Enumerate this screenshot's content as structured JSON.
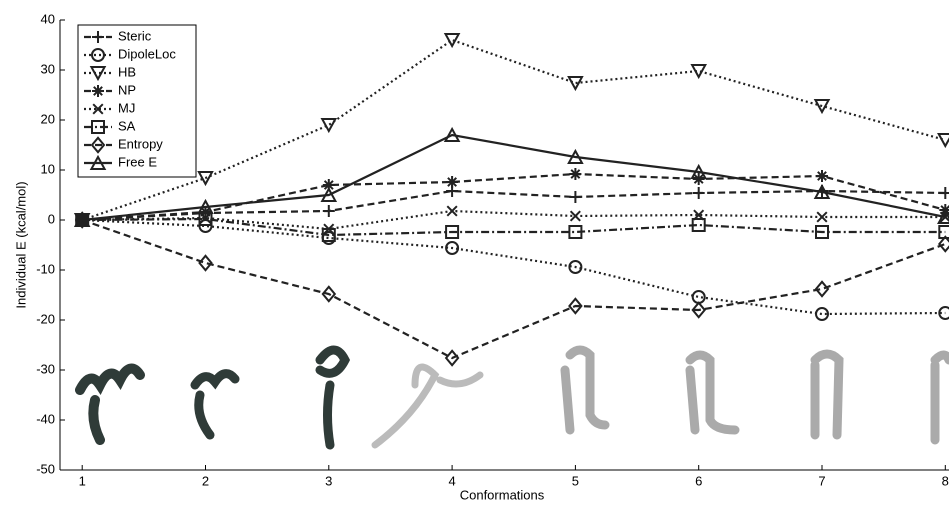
{
  "chart_data": {
    "type": "line",
    "x_label": "Conformations",
    "y_label": "Individual E (kcal/mol)",
    "x": [
      1,
      2,
      3,
      4,
      5,
      6,
      7,
      8
    ],
    "xlim": [
      0.82,
      8.03
    ],
    "xticks": [
      1,
      2,
      3,
      4,
      5,
      6,
      7,
      8
    ],
    "ylim": [
      -50,
      40
    ],
    "yticks": [
      -50,
      -40,
      -30,
      -20,
      -10,
      0,
      10,
      20,
      30,
      40
    ],
    "legend": "upper left",
    "series": [
      {
        "name": "Steric",
        "color": "#222222",
        "marker": "plus",
        "line_style": "dashed",
        "values": [
          0,
          1.4,
          1.8,
          5.8,
          4.6,
          5.4,
          5.8,
          5.4
        ]
      },
      {
        "name": "DipoleLoc",
        "color": "#222222",
        "marker": "circle",
        "line_style": "dotted",
        "values": [
          0,
          -1.2,
          -3.6,
          -5.6,
          -9.4,
          -15.4,
          -18.8,
          -18.6
        ]
      },
      {
        "name": "HB",
        "color": "#222222",
        "marker": "triangle-down",
        "line_style": "dotted",
        "values": [
          0,
          8.4,
          19,
          36,
          27.4,
          29.8,
          22.8,
          16
        ]
      },
      {
        "name": "NP",
        "color": "#222222",
        "marker": "asterisk",
        "line_style": "dashed",
        "values": [
          0,
          1.6,
          7,
          7.6,
          9.2,
          8.2,
          8.8,
          2
        ]
      },
      {
        "name": "MJ",
        "color": "#222222",
        "marker": "x",
        "line_style": "dotted",
        "values": [
          0,
          0.4,
          -1.8,
          1.8,
          0.8,
          1,
          0.6,
          0.6
        ]
      },
      {
        "name": "SA",
        "color": "#222222",
        "marker": "square",
        "line_style": "dashdot",
        "values": [
          0,
          0.2,
          -3,
          -2.4,
          -2.4,
          -1,
          -2.4,
          -2.4
        ]
      },
      {
        "name": "Entropy",
        "color": "#222222",
        "marker": "diamond",
        "line_style": "dashed",
        "values": [
          0,
          -8.6,
          -14.8,
          -27.6,
          -17.2,
          -18,
          -13.8,
          -4.8
        ]
      },
      {
        "name": "Free E",
        "color": "#222222",
        "marker": "triangle-up",
        "line_style": "solid",
        "values": [
          0,
          2.6,
          5,
          17,
          12.6,
          9.6,
          5.6,
          0.6
        ]
      }
    ]
  }
}
